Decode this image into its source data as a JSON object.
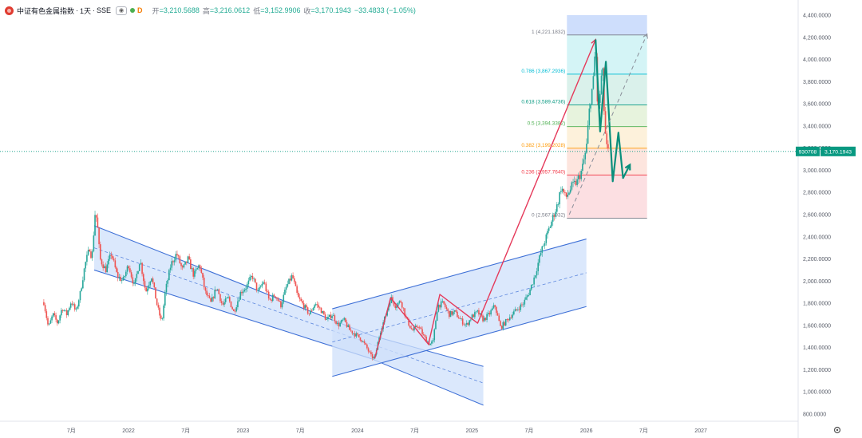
{
  "header": {
    "title": "中证有色金属指数",
    "interval": "1天",
    "exchange": "SSE",
    "badge": "D",
    "open_label": "开",
    "open_value": "=3,210.5688",
    "high_label": "高",
    "high_value": "=3,216.0612",
    "low_label": "低",
    "low_value": "=3,152.9906",
    "close_label": "收",
    "close_value": "=3,170.1943",
    "change_value": "−33.4833 (−1.05%)"
  },
  "price_tag": {
    "symbol": "930708",
    "price": "3,170.1943",
    "value": 3170.1943,
    "color": "#089981"
  },
  "colors": {
    "up": "#26a69a",
    "down": "#ef5350",
    "channel_fill": "#cfe0fb",
    "channel_line": "#3d6fd6",
    "wave_red": "#e5395a",
    "wave_green": "#0a8f7c"
  },
  "settings_icon": "gear-icon",
  "chart_data": {
    "type": "candlestick",
    "y_axis": {
      "min": 800,
      "max": 4400,
      "ticks": [
        "800.0000",
        "1,000.0000",
        "1,200.0000",
        "1,400.0000",
        "1,600.0000",
        "1,800.0000",
        "2,000.0000",
        "2,200.0000",
        "2,400.0000",
        "2,600.0000",
        "2,800.0000",
        "3,000.0000",
        "3,200.0000",
        "3,400.0000",
        "3,600.0000",
        "3,800.0000",
        "4,000.0000",
        "4,200.0000",
        "4,400.0000"
      ],
      "tick_values": [
        800,
        1000,
        1200,
        1400,
        1600,
        1800,
        2000,
        2200,
        2400,
        2600,
        2800,
        3000,
        3200,
        3400,
        3600,
        3800,
        4000,
        4200,
        4400
      ]
    },
    "x_axis": {
      "start": 2021.17,
      "end": 2027.85,
      "ticks": [
        {
          "label": "7月",
          "t": 2021.5
        },
        {
          "label": "2022",
          "t": 2022.0
        },
        {
          "label": "7月",
          "t": 2022.5
        },
        {
          "label": "2023",
          "t": 2023.0
        },
        {
          "label": "7月",
          "t": 2023.5
        },
        {
          "label": "2024",
          "t": 2024.0
        },
        {
          "label": "7月",
          "t": 2024.5
        },
        {
          "label": "2025",
          "t": 2025.0
        },
        {
          "label": "7月",
          "t": 2025.5
        },
        {
          "label": "2026",
          "t": 2026.0
        },
        {
          "label": "7月",
          "t": 2026.5
        },
        {
          "label": "2027",
          "t": 2027.0
        }
      ]
    },
    "price_path": [
      [
        2021.26,
        1810
      ],
      [
        2021.3,
        1580
      ],
      [
        2021.34,
        1700
      ],
      [
        2021.38,
        1620
      ],
      [
        2021.42,
        1760
      ],
      [
        2021.46,
        1700
      ],
      [
        2021.5,
        1820
      ],
      [
        2021.54,
        1720
      ],
      [
        2021.58,
        1900
      ],
      [
        2021.62,
        2150
      ],
      [
        2021.66,
        2300
      ],
      [
        2021.68,
        2200
      ],
      [
        2021.71,
        2650
      ],
      [
        2021.73,
        2480
      ],
      [
        2021.75,
        2200
      ],
      [
        2021.8,
        2100
      ],
      [
        2021.85,
        2250
      ],
      [
        2021.9,
        2050
      ],
      [
        2021.95,
        2000
      ],
      [
        2022.0,
        2150
      ],
      [
        2022.05,
        1950
      ],
      [
        2022.1,
        2200
      ],
      [
        2022.15,
        1900
      ],
      [
        2022.2,
        2050
      ],
      [
        2022.25,
        1780
      ],
      [
        2022.29,
        1620
      ],
      [
        2022.32,
        1900
      ],
      [
        2022.37,
        2150
      ],
      [
        2022.42,
        2250
      ],
      [
        2022.47,
        2100
      ],
      [
        2022.52,
        2200
      ],
      [
        2022.57,
        2050
      ],
      [
        2022.62,
        2150
      ],
      [
        2022.67,
        1900
      ],
      [
        2022.72,
        1800
      ],
      [
        2022.77,
        1950
      ],
      [
        2022.82,
        1780
      ],
      [
        2022.87,
        1850
      ],
      [
        2022.92,
        1720
      ],
      [
        2022.98,
        1900
      ],
      [
        2023.03,
        1950
      ],
      [
        2023.08,
        2050
      ],
      [
        2023.13,
        1900
      ],
      [
        2023.18,
        2000
      ],
      [
        2023.23,
        1820
      ],
      [
        2023.28,
        1880
      ],
      [
        2023.33,
        1780
      ],
      [
        2023.38,
        1950
      ],
      [
        2023.43,
        2050
      ],
      [
        2023.48,
        1850
      ],
      [
        2023.53,
        1780
      ],
      [
        2023.58,
        1700
      ],
      [
        2023.63,
        1800
      ],
      [
        2023.68,
        1740
      ],
      [
        2023.73,
        1650
      ],
      [
        2023.78,
        1700
      ],
      [
        2023.83,
        1600
      ],
      [
        2023.88,
        1650
      ],
      [
        2023.93,
        1560
      ],
      [
        2023.98,
        1520
      ],
      [
        2024.03,
        1480
      ],
      [
        2024.08,
        1400
      ],
      [
        2024.12,
        1320
      ],
      [
        2024.15,
        1300
      ],
      [
        2024.2,
        1550
      ],
      [
        2024.25,
        1700
      ],
      [
        2024.29,
        1850
      ],
      [
        2024.33,
        1780
      ],
      [
        2024.38,
        1820
      ],
      [
        2024.43,
        1650
      ],
      [
        2024.48,
        1550
      ],
      [
        2024.53,
        1600
      ],
      [
        2024.58,
        1500
      ],
      [
        2024.63,
        1430
      ],
      [
        2024.66,
        1450
      ],
      [
        2024.7,
        1780
      ],
      [
        2024.75,
        1800
      ],
      [
        2024.8,
        1700
      ],
      [
        2024.85,
        1720
      ],
      [
        2024.9,
        1650
      ],
      [
        2024.95,
        1600
      ],
      [
        2025.0,
        1680
      ],
      [
        2025.05,
        1720
      ],
      [
        2025.1,
        1650
      ],
      [
        2025.15,
        1700
      ],
      [
        2025.2,
        1780
      ],
      [
        2025.25,
        1580
      ],
      [
        2025.3,
        1640
      ],
      [
        2025.35,
        1700
      ],
      [
        2025.4,
        1750
      ],
      [
        2025.45,
        1800
      ],
      [
        2025.5,
        1900
      ],
      [
        2025.55,
        2050
      ],
      [
        2025.6,
        2250
      ],
      [
        2025.65,
        2400
      ],
      [
        2025.7,
        2550
      ],
      [
        2025.75,
        2700
      ],
      [
        2025.78,
        2850
      ],
      [
        2025.82,
        2750
      ],
      [
        2025.87,
        2850
      ],
      [
        2025.92,
        2900
      ],
      [
        2025.96,
        3000
      ],
      [
        2026.0,
        3200
      ],
      [
        2026.03,
        3600
      ],
      [
        2026.06,
        3800
      ],
      [
        2026.08,
        4150
      ],
      [
        2026.1,
        3500
      ],
      [
        2026.12,
        3700
      ],
      [
        2026.14,
        3950
      ],
      [
        2026.16,
        3400
      ],
      [
        2026.18,
        3180
      ],
      [
        2026.19,
        3170
      ]
    ],
    "fibonacci": {
      "start": 2025.83,
      "end": 2026.53,
      "levels": [
        {
          "ratio": "1",
          "price": 4221.1832,
          "label": "1 (4,221.1832)",
          "color": "#787b86",
          "fill": "#e6e6e8"
        },
        {
          "ratio": "0.786",
          "price": 3867.2936,
          "label": "0.786 (3,867.2936)",
          "color": "#00bcd4",
          "fill": "#cdf2f5"
        },
        {
          "ratio": "0.618",
          "price": 3589.4736,
          "label": "0.618 (3,589.4736)",
          "color": "#089981",
          "fill": "#d3eee7"
        },
        {
          "ratio": "0.5",
          "price": 3394.3382,
          "label": "0.5 (3,394.3382)",
          "color": "#4caf50",
          "fill": "#e3f1d7"
        },
        {
          "ratio": "0.382",
          "price": 3199.2028,
          "label": "0.382 (3,199.2028)",
          "color": "#ff9800",
          "fill": "#fdefd5"
        },
        {
          "ratio": "0.236",
          "price": 2957.764,
          "label": "0.236 (2,957.7640)",
          "color": "#f23645",
          "fill": "#fde0d8"
        },
        {
          "ratio": "0",
          "price": 2567.4932,
          "label": "0 (2,567.4932)",
          "color": "#787b86",
          "fill": "#fbd9dd"
        }
      ]
    },
    "highlight_box": {
      "t1": 2025.83,
      "t2": 2026.53,
      "p1": 4400,
      "p2": 4221.1832
    },
    "channels": [
      {
        "upper": [
          [
            2021.7,
            2500
          ],
          [
            2024.12,
            1510
          ]
        ],
        "lower": [
          [
            2021.7,
            2100
          ],
          [
            2024.12,
            1300
          ]
        ],
        "ext_upper": [
          [
            2024.12,
            1510
          ],
          [
            2025.1,
            1230
          ]
        ],
        "ext_lower": [
          [
            2024.12,
            1300
          ],
          [
            2025.1,
            880
          ]
        ],
        "mid": [
          [
            2021.7,
            2300
          ],
          [
            2025.1,
            1080
          ]
        ]
      },
      {
        "upper": [
          [
            2023.78,
            1750
          ],
          [
            2026.0,
            2380
          ]
        ],
        "lower": [
          [
            2023.78,
            1140
          ],
          [
            2026.0,
            1770
          ]
        ],
        "mid": [
          [
            2023.78,
            1450
          ],
          [
            2026.0,
            2075
          ]
        ]
      }
    ],
    "wave_red": [
      [
        2024.15,
        1300
      ],
      [
        2024.29,
        1850
      ],
      [
        2024.62,
        1430
      ],
      [
        2024.72,
        1880
      ],
      [
        2025.05,
        1620
      ],
      [
        2026.08,
        4180
      ]
    ],
    "wave_green": [
      [
        2026.08,
        4180
      ],
      [
        2026.12,
        3350
      ],
      [
        2026.17,
        3980
      ],
      [
        2026.23,
        2900
      ],
      [
        2026.28,
        3340
      ],
      [
        2026.32,
        2930
      ],
      [
        2026.38,
        3050
      ]
    ],
    "projection_dashed": [
      [
        2025.85,
        2600
      ],
      [
        2026.53,
        4230
      ]
    ]
  }
}
